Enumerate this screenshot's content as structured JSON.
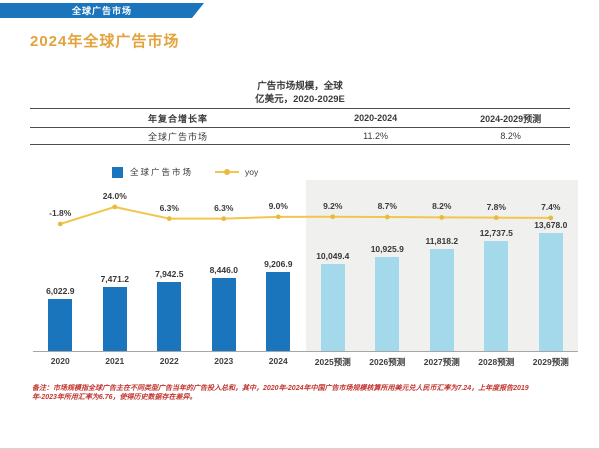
{
  "header": {
    "tab_label": "全球广告市场"
  },
  "page_title": "2024年全球广告市场",
  "table": {
    "headers": [
      "年复合增长率",
      "2020-2024",
      "2024-2029预测"
    ],
    "rows": [
      [
        "全球广告市场",
        "11.2%",
        "8.2%"
      ]
    ]
  },
  "legend": {
    "bars_label": "全球广告市场",
    "line_label": "yoy"
  },
  "chart_data": {
    "type": "bar+line",
    "title": "广告市场规模，全球",
    "unit": "亿美元，2020-2029E",
    "categories": [
      "2020",
      "2021",
      "2022",
      "2023",
      "2024",
      "2025预测",
      "2026预测",
      "2027预测",
      "2028预测",
      "2029预测"
    ],
    "series": [
      {
        "name": "全球广告市场",
        "type": "bar",
        "values": [
          6022.9,
          7471.2,
          7942.5,
          8446.0,
          9206.9,
          10049.4,
          10925.9,
          11818.2,
          12737.5,
          13678.0
        ],
        "labels": [
          "6,022.9",
          "7,471.2",
          "7,942.5",
          "8,446.0",
          "9,206.9",
          "10,049.4",
          "10,925.9",
          "11,818.2",
          "12,737.5",
          "13,678.0"
        ]
      },
      {
        "name": "yoy",
        "type": "line",
        "values": [
          -1.8,
          24.0,
          6.3,
          6.3,
          9.0,
          9.2,
          8.7,
          8.2,
          7.8,
          7.4
        ],
        "labels": [
          "-1.8%",
          "24.0%",
          "6.3%",
          "6.3%",
          "9.0%",
          "9.2%",
          "8.7%",
          "8.2%",
          "7.8%",
          "7.4%"
        ]
      }
    ],
    "forecast_start_index": 5,
    "legend_position": "top-left",
    "grid": false,
    "colors": {
      "bar_actual": "#1b75bc",
      "bar_forecast": "#a4d8eb",
      "line": "#f2c64e",
      "marker": "#eaba40",
      "forecast_bg": "#f0f0ef"
    }
  },
  "footnote": {
    "line1": "备注：市场规模指全球广告主在不同类型广告当年的广告投入总和，其中，2020年-2024年中国广告市场规模核算所用美元兑人民币汇率为7.24，上年度报告2019",
    "line2": "年-2023年所用汇率为6.76，使得历史数据存在差异。"
  },
  "accent_colors": {
    "header_bar": "#1b75bc",
    "title_text": "#e2a33c",
    "footnote_text": "#c2342e"
  }
}
